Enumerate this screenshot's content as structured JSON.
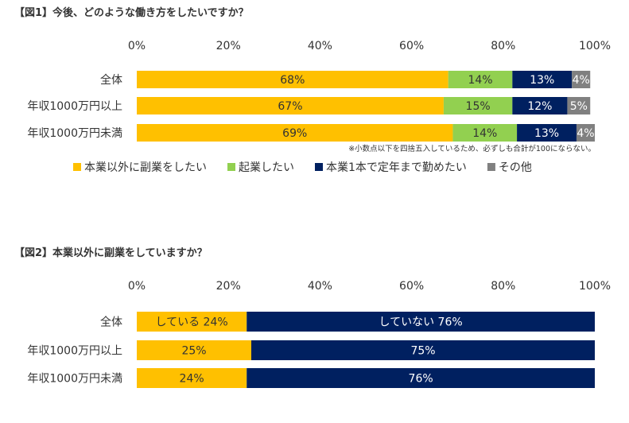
{
  "chart_data": [
    {
      "type": "bar",
      "orientation": "horizontal",
      "stacked": true,
      "title": "【図1】今後、どのような働き方をしたいですか？",
      "axis_ticks": [
        "0%",
        "20%",
        "40%",
        "60%",
        "80%",
        "100%"
      ],
      "xlim": [
        0,
        100
      ],
      "categories": [
        "全体",
        "年収1000万円以上",
        "年収1000万円未満"
      ],
      "series": [
        {
          "name": "本業以外に副業をしたい",
          "color": "#FFC000",
          "label_color": "#333333",
          "values": [
            68,
            67,
            69
          ],
          "labels": [
            "68%",
            "67%",
            "69%"
          ]
        },
        {
          "name": "起業したい",
          "color": "#92D050",
          "label_color": "#333333",
          "values": [
            14,
            15,
            14
          ],
          "labels": [
            "14%",
            "15%",
            "14%"
          ]
        },
        {
          "name": "本業1本で定年まで勤めたい",
          "color": "#002060",
          "label_color": "#ffffff",
          "values": [
            13,
            12,
            13
          ],
          "labels": [
            "13%",
            "12%",
            "13%"
          ]
        },
        {
          "name": "その他",
          "color": "#808080",
          "label_color": "#ffffff",
          "values": [
            4,
            5,
            4
          ],
          "labels": [
            "4%",
            "5%",
            "4%"
          ]
        }
      ],
      "note": "※小数点以下を四捨五入しているため、必ずしも合計が100にならない。",
      "legend_position": "bottom"
    },
    {
      "type": "bar",
      "orientation": "horizontal",
      "stacked": true,
      "title": "【図2】本業以外に副業をしていますか？",
      "axis_ticks": [
        "0%",
        "20%",
        "40%",
        "60%",
        "80%",
        "100%"
      ],
      "xlim": [
        0,
        100
      ],
      "categories": [
        "全体",
        "年収1000万円以上",
        "年収1000万円未満"
      ],
      "series": [
        {
          "color": "#FFC000",
          "label_color": "#333333",
          "values": [
            24,
            25,
            24
          ],
          "labels": [
            "している 24%",
            "25%",
            "24%"
          ]
        },
        {
          "color": "#002060",
          "label_color": "#ffffff",
          "values": [
            76,
            75,
            76
          ],
          "labels": [
            "していない 76%",
            "75%",
            "76%"
          ]
        }
      ]
    }
  ]
}
